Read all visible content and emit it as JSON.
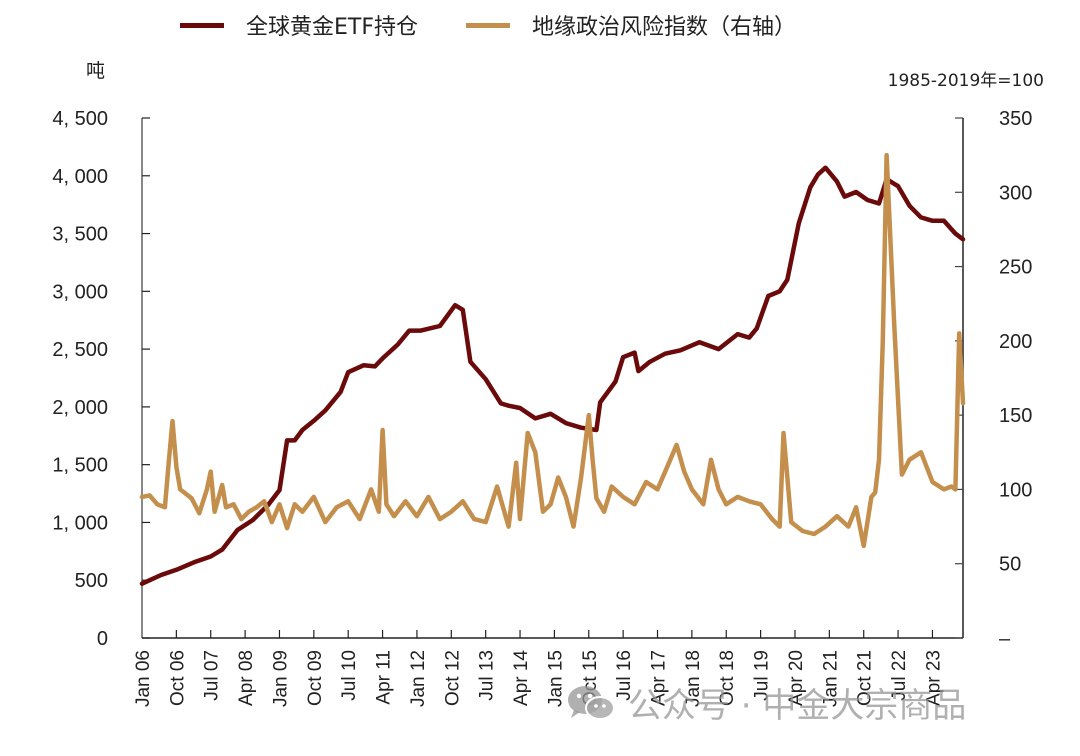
{
  "legend": [
    {
      "label": "全球黄金ETF持仓",
      "color": "#6b0a0a"
    },
    {
      "label": "地缘政治风险指数（右轴）",
      "color": "#c48f4c"
    }
  ],
  "units": {
    "left": "吨",
    "right": "1985-2019年=100"
  },
  "watermark": "公众号 · 中金大宗商品",
  "chart_data": {
    "type": "line",
    "title": "",
    "legend_position": "top",
    "grid": false,
    "x_tick_labels": [
      "Jan 06",
      "Oct 06",
      "Jul 07",
      "Apr 08",
      "Jan 09",
      "Oct 09",
      "Jul 10",
      "Apr 11",
      "Jan 12",
      "Oct 12",
      "Jul 13",
      "Apr 14",
      "Jan 15",
      "Oct 15",
      "Jul 16",
      "Apr 17",
      "Jan 18",
      "Oct 18",
      "Jul 19",
      "Apr 20",
      "Jan 21",
      "Oct 21",
      "Jul 22",
      "Apr 23"
    ],
    "x_range": [
      "Jan 06",
      "Dec 23"
    ],
    "left_axis": {
      "label": "吨",
      "ylim": [
        0,
        4500
      ],
      "ticks": [
        "0",
        "500",
        "1, 000",
        "1, 500",
        "2, 000",
        "2, 500",
        "3, 000",
        "3, 500",
        "4, 000",
        "4, 500"
      ]
    },
    "right_axis": {
      "label": "1985-2019年=100",
      "ylim": [
        0,
        350
      ],
      "ticks": [
        "–",
        "50",
        "100",
        "150",
        "200",
        "250",
        "300",
        "350"
      ]
    },
    "series": [
      {
        "name": "全球黄金ETF持仓",
        "axis": "left",
        "color": "#6b0a0a",
        "x": [
          "Jan 06",
          "Jun 06",
          "Oct 06",
          "Mar 07",
          "Jul 07",
          "Oct 07",
          "Feb 08",
          "Jun 08",
          "Oct 08",
          "Jan 09",
          "Mar 09",
          "May 09",
          "Jul 09",
          "Oct 09",
          "Jan 10",
          "May 10",
          "Jul 10",
          "Nov 10",
          "Feb 11",
          "Apr 11",
          "Aug 11",
          "Nov 11",
          "Feb 12",
          "Jul 12",
          "Nov 12",
          "Jan 13",
          "Mar 13",
          "Jul 13",
          "Nov 13",
          "Jan 14",
          "Apr 14",
          "Aug 14",
          "Dec 14",
          "Apr 15",
          "Aug 15",
          "Dec 15",
          "Jan 16",
          "May 16",
          "Jul 16",
          "Oct 16",
          "Nov 16",
          "Feb 17",
          "Jun 17",
          "Oct 17",
          "Mar 18",
          "Aug 18",
          "Jan 19",
          "Apr 19",
          "Jun 19",
          "Sep 19",
          "Dec 19",
          "Feb 20",
          "May 20",
          "Aug 20",
          "Oct 20",
          "Dec 20",
          "Mar 21",
          "May 21",
          "Aug 21",
          "Nov 21",
          "Feb 22",
          "Apr 22",
          "Jul 22",
          "Oct 22",
          "Jan 23",
          "Apr 23",
          "Jul 23",
          "Oct 23",
          "Dec 23"
        ],
        "values": [
          470,
          545,
          590,
          660,
          705,
          765,
          935,
          1020,
          1150,
          1280,
          1710,
          1710,
          1800,
          1880,
          1970,
          2130,
          2300,
          2360,
          2350,
          2420,
          2540,
          2660,
          2660,
          2700,
          2880,
          2840,
          2390,
          2240,
          2030,
          2010,
          1990,
          1900,
          1940,
          1860,
          1820,
          1800,
          2040,
          2220,
          2430,
          2470,
          2310,
          2390,
          2460,
          2490,
          2560,
          2500,
          2630,
          2600,
          2680,
          2960,
          3000,
          3100,
          3590,
          3900,
          4010,
          4070,
          3950,
          3820,
          3860,
          3790,
          3760,
          3970,
          3910,
          3740,
          3640,
          3610,
          3610,
          3500,
          3450
        ],
        "values_unit": "吨"
      },
      {
        "name": "地缘政治风险指数（右轴）",
        "axis": "right",
        "color": "#c48f4c",
        "x": [
          "Jan 06",
          "Mar 06",
          "May 06",
          "Jul 06",
          "Aug 06",
          "Sep 06",
          "Oct 06",
          "Nov 06",
          "Dec 06",
          "Feb 07",
          "Apr 07",
          "Jun 07",
          "Jul 07",
          "Aug 07",
          "Oct 07",
          "Nov 07",
          "Jan 08",
          "Mar 08",
          "May 08",
          "Jul 08",
          "Sep 08",
          "Nov 08",
          "Jan 09",
          "Mar 09",
          "May 09",
          "Jul 09",
          "Oct 09",
          "Jan 10",
          "Apr 10",
          "Jul 10",
          "Oct 10",
          "Jan 11",
          "Mar 11",
          "Apr 11",
          "May 11",
          "Jul 11",
          "Oct 11",
          "Jan 12",
          "Apr 12",
          "Jul 12",
          "Oct 12",
          "Jan 13",
          "Apr 13",
          "Jul 13",
          "Oct 13",
          "Jan 14",
          "Mar 14",
          "Apr 14",
          "Jun 14",
          "Aug 14",
          "Oct 14",
          "Dec 14",
          "Feb 15",
          "Apr 15",
          "Jun 15",
          "Aug 15",
          "Oct 15",
          "Nov 15",
          "Dec 15",
          "Feb 16",
          "Apr 16",
          "Jul 16",
          "Oct 16",
          "Jan 17",
          "Apr 17",
          "Jul 17",
          "Sep 17",
          "Nov 17",
          "Jan 18",
          "Apr 18",
          "Jun 18",
          "Aug 18",
          "Oct 18",
          "Jan 19",
          "Apr 19",
          "Jul 19",
          "Oct 19",
          "Dec 19",
          "Jan 20",
          "Mar 20",
          "Jun 20",
          "Sep 20",
          "Dec 20",
          "Mar 21",
          "Jun 21",
          "Aug 21",
          "Oct 21",
          "Dec 21",
          "Jan 22",
          "Feb 22",
          "Mar 22",
          "Apr 22",
          "Jun 22",
          "Aug 22",
          "Oct 22",
          "Jan 23",
          "Apr 23",
          "Jul 23",
          "Sep 23",
          "Oct 23",
          "Nov 23",
          "Dec 23"
        ],
        "values": [
          95,
          96,
          90,
          88,
          118,
          146,
          115,
          100,
          98,
          94,
          84,
          100,
          112,
          85,
          103,
          88,
          90,
          80,
          85,
          88,
          92,
          78,
          90,
          74,
          90,
          85,
          95,
          78,
          88,
          92,
          80,
          100,
          85,
          140,
          90,
          82,
          92,
          82,
          95,
          80,
          85,
          92,
          80,
          78,
          102,
          75,
          118,
          80,
          138,
          125,
          85,
          90,
          108,
          95,
          75,
          108,
          150,
          120,
          94,
          85,
          102,
          95,
          90,
          105,
          100,
          118,
          130,
          112,
          100,
          90,
          120,
          100,
          90,
          95,
          92,
          90,
          80,
          75,
          138,
          78,
          72,
          70,
          75,
          82,
          75,
          88,
          62,
          95,
          98,
          120,
          200,
          325,
          210,
          110,
          120,
          125,
          105,
          100,
          102,
          100,
          205,
          158
        ]
      }
    ]
  }
}
